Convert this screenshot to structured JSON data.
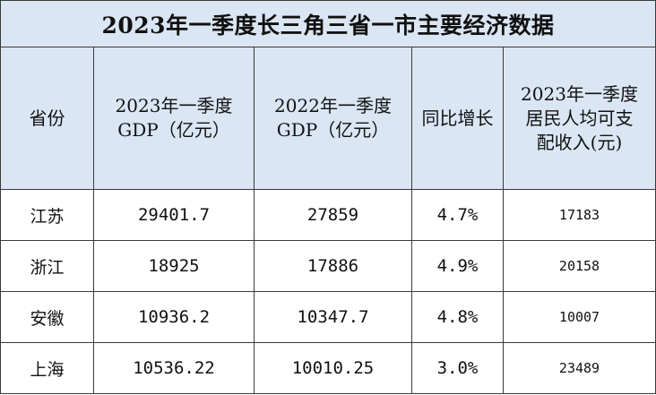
{
  "table": {
    "title": "2023年一季度长三角三省一市主要经济数据",
    "headers": [
      {
        "lines": [
          "省份"
        ]
      },
      {
        "lines": [
          "2023年一季度",
          "GDP（亿元）"
        ]
      },
      {
        "lines": [
          "2022年一季度",
          "GDP（亿元）"
        ]
      },
      {
        "lines": [
          "同比增长"
        ]
      },
      {
        "lines": [
          "2023年一季度",
          "居民人均可支",
          "配收入(元)"
        ]
      }
    ],
    "rows": [
      {
        "province": "江苏",
        "gdp_2023": "29401.7",
        "gdp_2022": "27859",
        "growth": "4.7%",
        "income": "17183"
      },
      {
        "province": "浙江",
        "gdp_2023": "18925",
        "gdp_2022": "17886",
        "growth": "4.9%",
        "income": "20158"
      },
      {
        "province": "安徽",
        "gdp_2023": "10936.2",
        "gdp_2022": "10347.7",
        "growth": "4.8%",
        "income": "10007"
      },
      {
        "province": "上海",
        "gdp_2023": "10536.22",
        "gdp_2022": "10010.25",
        "growth": "3.0%",
        "income": "23489"
      }
    ]
  }
}
